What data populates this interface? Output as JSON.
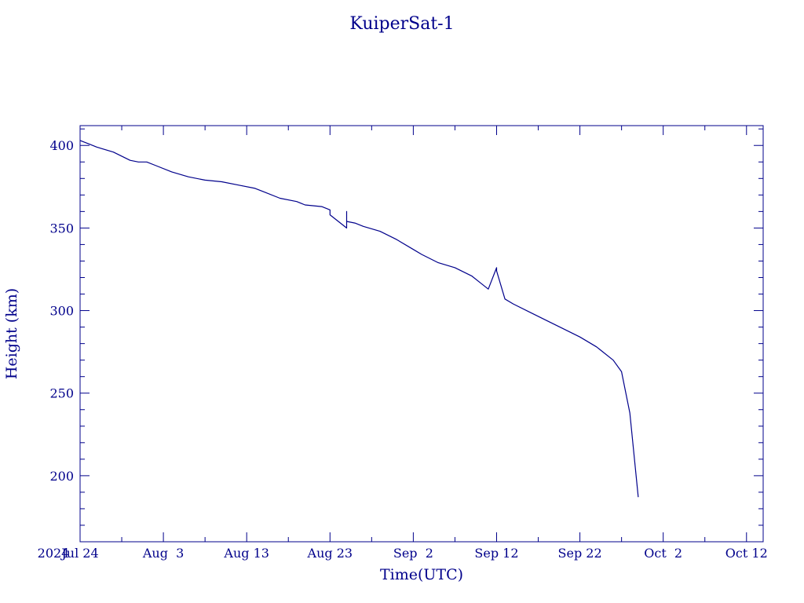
{
  "chart_data": {
    "type": "line",
    "title": "KuiperSat-1",
    "xlabel": "Time(UTC)",
    "ylabel": "Height (km)",
    "x_year_label": "2024",
    "xlim": [
      "2024-07-24",
      "2024-10-14"
    ],
    "ylim": [
      160,
      412
    ],
    "x_ticks": [
      {
        "date": "2024-07-24",
        "label": "Jul 24"
      },
      {
        "date": "2024-08-03",
        "label": "Aug  3"
      },
      {
        "date": "2024-08-13",
        "label": "Aug 13"
      },
      {
        "date": "2024-08-23",
        "label": "Aug 23"
      },
      {
        "date": "2024-09-02",
        "label": "Sep  2"
      },
      {
        "date": "2024-09-12",
        "label": "Sep 12"
      },
      {
        "date": "2024-09-22",
        "label": "Sep 22"
      },
      {
        "date": "2024-10-02",
        "label": "Oct  2"
      },
      {
        "date": "2024-10-12",
        "label": "Oct 12"
      }
    ],
    "y_ticks": [
      200,
      250,
      300,
      350,
      400
    ],
    "grid": false,
    "line_color": "#00008b",
    "series": [
      {
        "x": [
          "2024-07-24",
          "2024-07-25",
          "2024-07-26",
          "2024-07-28",
          "2024-07-30",
          "2024-07-31",
          "2024-08-01",
          "2024-08-02",
          "2024-08-04",
          "2024-08-06",
          "2024-08-08",
          "2024-08-10",
          "2024-08-12",
          "2024-08-14",
          "2024-08-15",
          "2024-08-17",
          "2024-08-19",
          "2024-08-20",
          "2024-08-22",
          "2024-08-23",
          "2024-08-23",
          "2024-08-24",
          "2024-08-25",
          "2024-08-25",
          "2024-08-25",
          "2024-08-26",
          "2024-08-27",
          "2024-08-29",
          "2024-08-31",
          "2024-09-02",
          "2024-09-03",
          "2024-09-05",
          "2024-09-07",
          "2024-09-09",
          "2024-09-10",
          "2024-09-11",
          "2024-09-12",
          "2024-09-12",
          "2024-09-13",
          "2024-09-14",
          "2024-09-16",
          "2024-09-18",
          "2024-09-20",
          "2024-09-22",
          "2024-09-24",
          "2024-09-26",
          "2024-09-27",
          "2024-09-28",
          "2024-09-29"
        ],
        "y": [
          403,
          401,
          399,
          396,
          391,
          390,
          390,
          388,
          384,
          381,
          379,
          378,
          376,
          374,
          372,
          368,
          366,
          364,
          363,
          361,
          358,
          354,
          350,
          360,
          354,
          353,
          351,
          348,
          343,
          337,
          334,
          329,
          326,
          321,
          317,
          313,
          326,
          324,
          307,
          304,
          299,
          294,
          289,
          284,
          278,
          270,
          263,
          238,
          187
        ]
      }
    ]
  }
}
